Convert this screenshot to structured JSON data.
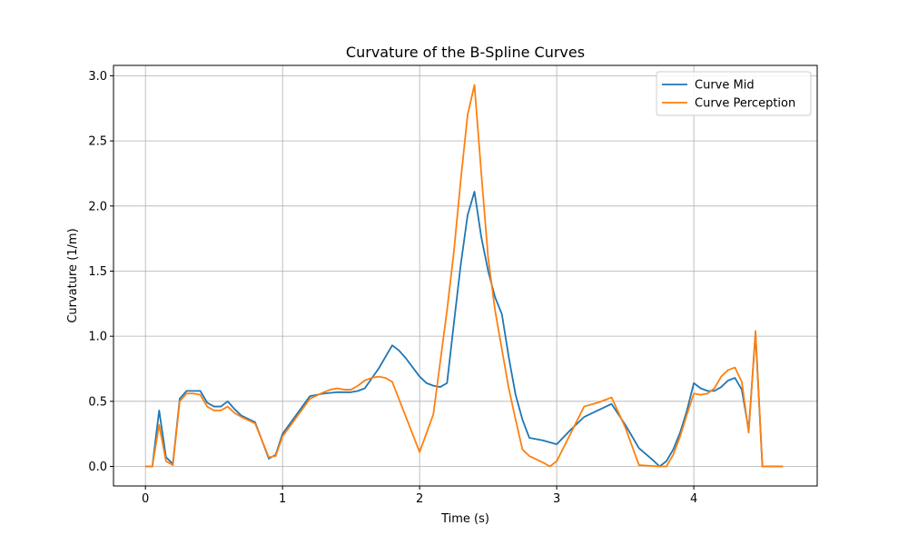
{
  "chart_data": {
    "type": "line",
    "title": "Curvature of the B-Spline Curves",
    "xlabel": "Time (s)",
    "ylabel": "Curvature (1/m)",
    "xlim": [
      -0.233,
      4.9
    ],
    "ylim": [
      -0.15,
      3.08
    ],
    "xticks": [
      0,
      1,
      2,
      3,
      4
    ],
    "xtick_labels": [
      "0",
      "1",
      "2",
      "3",
      "4"
    ],
    "yticks": [
      0.0,
      0.5,
      1.0,
      1.5,
      2.0,
      2.5,
      3.0
    ],
    "ytick_labels": [
      "0.0",
      "0.5",
      "1.0",
      "1.5",
      "2.0",
      "2.5",
      "3.0"
    ],
    "grid": true,
    "legend_position": "top-right",
    "series": [
      {
        "name": "Curve Mid",
        "color": "#1f77b4",
        "points": [
          [
            0.0,
            0.0
          ],
          [
            0.05,
            0.0
          ],
          [
            0.1,
            0.43
          ],
          [
            0.15,
            0.07
          ],
          [
            0.2,
            0.02
          ],
          [
            0.25,
            0.52
          ],
          [
            0.3,
            0.58
          ],
          [
            0.35,
            0.58
          ],
          [
            0.4,
            0.58
          ],
          [
            0.45,
            0.49
          ],
          [
            0.5,
            0.46
          ],
          [
            0.55,
            0.46
          ],
          [
            0.6,
            0.5
          ],
          [
            0.65,
            0.44
          ],
          [
            0.7,
            0.39
          ],
          [
            0.8,
            0.34
          ],
          [
            0.9,
            0.06
          ],
          [
            0.95,
            0.09
          ],
          [
            1.0,
            0.25
          ],
          [
            1.2,
            0.54
          ],
          [
            1.3,
            0.56
          ],
          [
            1.4,
            0.57
          ],
          [
            1.45,
            0.57
          ],
          [
            1.5,
            0.57
          ],
          [
            1.55,
            0.58
          ],
          [
            1.6,
            0.6
          ],
          [
            1.7,
            0.75
          ],
          [
            1.8,
            0.93
          ],
          [
            1.85,
            0.89
          ],
          [
            1.9,
            0.83
          ],
          [
            1.95,
            0.76
          ],
          [
            2.0,
            0.69
          ],
          [
            2.05,
            0.64
          ],
          [
            2.1,
            0.62
          ],
          [
            2.15,
            0.61
          ],
          [
            2.2,
            0.64
          ],
          [
            2.25,
            1.1
          ],
          [
            2.3,
            1.55
          ],
          [
            2.35,
            1.93
          ],
          [
            2.4,
            2.11
          ],
          [
            2.45,
            1.76
          ],
          [
            2.5,
            1.5
          ],
          [
            2.55,
            1.3
          ],
          [
            2.6,
            1.17
          ],
          [
            2.65,
            0.84
          ],
          [
            2.7,
            0.55
          ],
          [
            2.75,
            0.36
          ],
          [
            2.8,
            0.22
          ],
          [
            2.9,
            0.2
          ],
          [
            3.0,
            0.17
          ],
          [
            3.1,
            0.28
          ],
          [
            3.2,
            0.38
          ],
          [
            3.3,
            0.43
          ],
          [
            3.4,
            0.48
          ],
          [
            3.5,
            0.32
          ],
          [
            3.6,
            0.14
          ],
          [
            3.7,
            0.05
          ],
          [
            3.75,
            0.0
          ],
          [
            3.8,
            0.04
          ],
          [
            3.85,
            0.13
          ],
          [
            3.9,
            0.26
          ],
          [
            3.95,
            0.43
          ],
          [
            4.0,
            0.64
          ],
          [
            4.05,
            0.6
          ],
          [
            4.1,
            0.58
          ],
          [
            4.15,
            0.58
          ],
          [
            4.2,
            0.61
          ],
          [
            4.25,
            0.66
          ],
          [
            4.3,
            0.68
          ],
          [
            4.35,
            0.59
          ],
          [
            4.4,
            0.28
          ],
          [
            4.45,
            1.02
          ],
          [
            4.5,
            0.0
          ],
          [
            4.65,
            0.0
          ]
        ]
      },
      {
        "name": "Curve Perception",
        "color": "#ff7f0e",
        "points": [
          [
            0.0,
            0.0
          ],
          [
            0.05,
            0.0
          ],
          [
            0.1,
            0.32
          ],
          [
            0.15,
            0.04
          ],
          [
            0.2,
            0.01
          ],
          [
            0.25,
            0.5
          ],
          [
            0.3,
            0.56
          ],
          [
            0.35,
            0.56
          ],
          [
            0.4,
            0.55
          ],
          [
            0.45,
            0.46
          ],
          [
            0.5,
            0.43
          ],
          [
            0.55,
            0.43
          ],
          [
            0.6,
            0.46
          ],
          [
            0.65,
            0.41
          ],
          [
            0.7,
            0.38
          ],
          [
            0.8,
            0.33
          ],
          [
            0.9,
            0.07
          ],
          [
            0.95,
            0.08
          ],
          [
            1.0,
            0.23
          ],
          [
            1.2,
            0.52
          ],
          [
            1.3,
            0.57
          ],
          [
            1.35,
            0.59
          ],
          [
            1.4,
            0.6
          ],
          [
            1.45,
            0.59
          ],
          [
            1.5,
            0.59
          ],
          [
            1.55,
            0.62
          ],
          [
            1.6,
            0.66
          ],
          [
            1.65,
            0.68
          ],
          [
            1.7,
            0.69
          ],
          [
            1.75,
            0.68
          ],
          [
            1.8,
            0.65
          ],
          [
            1.9,
            0.38
          ],
          [
            2.0,
            0.11
          ],
          [
            2.1,
            0.4
          ],
          [
            2.15,
            0.8
          ],
          [
            2.2,
            1.2
          ],
          [
            2.25,
            1.65
          ],
          [
            2.3,
            2.2
          ],
          [
            2.35,
            2.7
          ],
          [
            2.4,
            2.93
          ],
          [
            2.45,
            2.25
          ],
          [
            2.5,
            1.6
          ],
          [
            2.55,
            1.2
          ],
          [
            2.6,
            0.9
          ],
          [
            2.65,
            0.6
          ],
          [
            2.7,
            0.36
          ],
          [
            2.75,
            0.13
          ],
          [
            2.8,
            0.08
          ],
          [
            2.9,
            0.03
          ],
          [
            2.95,
            0.0
          ],
          [
            3.0,
            0.04
          ],
          [
            3.1,
            0.25
          ],
          [
            3.2,
            0.46
          ],
          [
            3.3,
            0.49
          ],
          [
            3.4,
            0.53
          ],
          [
            3.5,
            0.3
          ],
          [
            3.6,
            0.01
          ],
          [
            3.75,
            0.0
          ],
          [
            3.8,
            0.0
          ],
          [
            3.85,
            0.09
          ],
          [
            3.9,
            0.23
          ],
          [
            3.95,
            0.4
          ],
          [
            4.0,
            0.56
          ],
          [
            4.05,
            0.55
          ],
          [
            4.1,
            0.56
          ],
          [
            4.15,
            0.6
          ],
          [
            4.2,
            0.69
          ],
          [
            4.25,
            0.74
          ],
          [
            4.3,
            0.76
          ],
          [
            4.35,
            0.65
          ],
          [
            4.4,
            0.26
          ],
          [
            4.45,
            1.04
          ],
          [
            4.5,
            0.0
          ],
          [
            4.65,
            0.0
          ]
        ]
      }
    ]
  }
}
